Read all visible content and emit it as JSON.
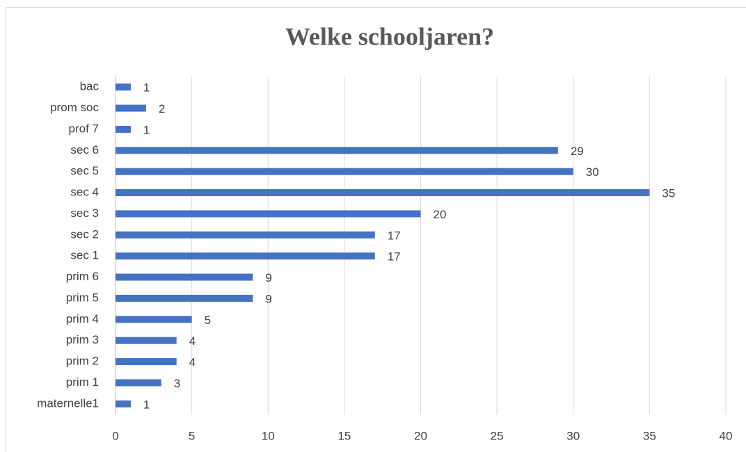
{
  "chart_data": {
    "type": "bar",
    "orientation": "horizontal",
    "title": "Welke schooljaren?",
    "categories": [
      "maternelle1",
      "prim 1",
      "prim 2",
      "prim 3",
      "prim 4",
      "prim 5",
      "prim 6",
      "sec 1",
      "sec 2",
      "sec 3",
      "sec 4",
      "sec 5",
      "sec 6",
      "prof 7",
      "prom soc",
      "bac"
    ],
    "values": [
      1,
      3,
      4,
      4,
      5,
      9,
      9,
      17,
      17,
      20,
      35,
      30,
      29,
      1,
      2,
      1
    ],
    "color": "#4472c4",
    "xlim": [
      0,
      40
    ],
    "xticks": [
      0,
      5,
      10,
      15,
      20,
      25,
      30,
      35,
      40
    ],
    "grid": true
  }
}
